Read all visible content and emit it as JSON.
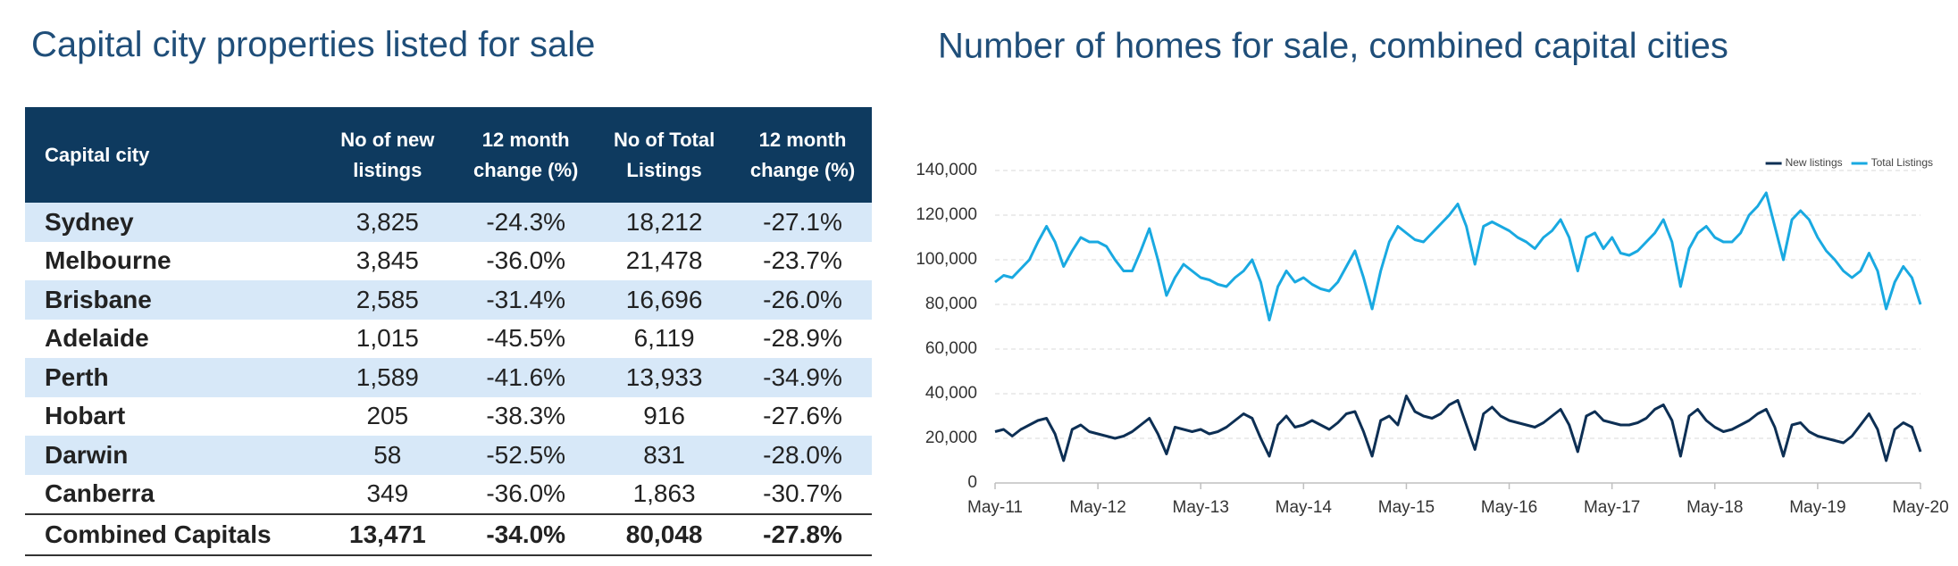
{
  "title": "Capital city properties listed for sale",
  "table": {
    "header": [
      "Capital city",
      "No of new listings",
      "12 month change (%)",
      "No of Total Listings",
      "12 month change (%)"
    ],
    "rows": [
      [
        "Sydney",
        "3,825",
        "-24.3%",
        "18,212",
        "-27.1%"
      ],
      [
        "Melbourne",
        "3,845",
        "-36.0%",
        "21,478",
        "-23.7%"
      ],
      [
        "Brisbane",
        "2,585",
        "-31.4%",
        "16,696",
        "-26.0%"
      ],
      [
        "Adelaide",
        "1,015",
        "-45.5%",
        "6,119",
        "-28.9%"
      ],
      [
        "Perth",
        "1,589",
        "-41.6%",
        "13,933",
        "-34.9%"
      ],
      [
        "Hobart",
        "205",
        "-38.3%",
        "916",
        "-27.6%"
      ],
      [
        "Darwin",
        "58",
        "-52.5%",
        "831",
        "-28.0%"
      ],
      [
        "Canberra",
        "349",
        "-36.0%",
        "1,863",
        "-30.7%"
      ]
    ],
    "total": [
      "Combined Capitals",
      "13,471",
      "-34.0%",
      "80,048",
      "-27.8%"
    ]
  },
  "chart_data": {
    "type": "line",
    "title": "Number of homes for sale, combined capital cities",
    "categories": [
      "May-11",
      null,
      null,
      null,
      null,
      null,
      null,
      null,
      null,
      null,
      null,
      null,
      "May-12",
      null,
      null,
      null,
      null,
      null,
      null,
      null,
      null,
      null,
      null,
      null,
      "May-13",
      null,
      null,
      null,
      null,
      null,
      null,
      null,
      null,
      null,
      null,
      null,
      "May-14",
      null,
      null,
      null,
      null,
      null,
      null,
      null,
      null,
      null,
      null,
      null,
      "May-15",
      null,
      null,
      null,
      null,
      null,
      null,
      null,
      null,
      null,
      null,
      null,
      "May-16",
      null,
      null,
      null,
      null,
      null,
      null,
      null,
      null,
      null,
      null,
      null,
      "May-17",
      null,
      null,
      null,
      null,
      null,
      null,
      null,
      null,
      null,
      null,
      null,
      "May-18",
      null,
      null,
      null,
      null,
      null,
      null,
      null,
      null,
      null,
      null,
      null,
      "May-19",
      null,
      null,
      null,
      null,
      null,
      null,
      null,
      null,
      null,
      null,
      null,
      "May-20"
    ],
    "series": [
      {
        "name": "New listings",
        "color": "#0d2f54",
        "values": [
          23000,
          24000,
          21000,
          24000,
          26000,
          28000,
          29000,
          22000,
          10000,
          24000,
          26000,
          23000,
          22000,
          21000,
          20000,
          21000,
          23000,
          26000,
          29000,
          22000,
          13000,
          25000,
          24000,
          23000,
          24000,
          22000,
          23000,
          25000,
          28000,
          31000,
          29000,
          20000,
          12000,
          26000,
          30000,
          25000,
          26000,
          28000,
          26000,
          24000,
          27000,
          31000,
          32000,
          23000,
          12000,
          28000,
          30000,
          26000,
          39000,
          32000,
          30000,
          29000,
          31000,
          35000,
          37000,
          26000,
          15000,
          31000,
          34000,
          30000,
          28000,
          27000,
          26000,
          25000,
          27000,
          30000,
          33000,
          26000,
          14000,
          30000,
          32000,
          28000,
          27000,
          26000,
          26000,
          27000,
          29000,
          33000,
          35000,
          28000,
          12000,
          30000,
          33000,
          28000,
          25000,
          23000,
          24000,
          26000,
          28000,
          31000,
          33000,
          25000,
          12000,
          26000,
          27000,
          23000,
          21000,
          20000,
          19000,
          18000,
          21000,
          26000,
          31000,
          24000,
          10000,
          24000,
          27000,
          25000,
          14000
        ]
      },
      {
        "name": "Total Listings",
        "color": "#19a9e1",
        "values": [
          90000,
          93000,
          92000,
          96000,
          100000,
          108000,
          115000,
          108000,
          97000,
          104000,
          110000,
          108000,
          108000,
          106000,
          100000,
          95000,
          95000,
          104000,
          114000,
          100000,
          84000,
          92000,
          98000,
          95000,
          92000,
          91000,
          89000,
          88000,
          92000,
          95000,
          100000,
          90000,
          73000,
          88000,
          95000,
          90000,
          92000,
          89000,
          87000,
          86000,
          90000,
          97000,
          104000,
          92000,
          78000,
          95000,
          108000,
          115000,
          112000,
          109000,
          108000,
          112000,
          116000,
          120000,
          125000,
          115000,
          98000,
          115000,
          117000,
          115000,
          113000,
          110000,
          108000,
          105000,
          110000,
          113000,
          118000,
          110000,
          95000,
          110000,
          112000,
          105000,
          110000,
          103000,
          102000,
          104000,
          108000,
          112000,
          118000,
          108000,
          88000,
          105000,
          112000,
          115000,
          110000,
          108000,
          108000,
          112000,
          120000,
          124000,
          130000,
          115000,
          100000,
          118000,
          122000,
          118000,
          110000,
          104000,
          100000,
          95000,
          92000,
          95000,
          103000,
          95000,
          78000,
          90000,
          97000,
          92000,
          80000
        ]
      }
    ],
    "ylim": [
      0,
      140000
    ],
    "yticks": [
      0,
      {
        "value": 20000,
        "label": "20,000"
      },
      {
        "value": 40000,
        "label": "40,000"
      },
      {
        "value": 60000,
        "label": "60,000"
      },
      {
        "value": 80000,
        "label": "80,000"
      },
      {
        "value": 100000,
        "label": "100,000"
      },
      {
        "value": 120000,
        "label": "120,000"
      },
      {
        "value": 140000,
        "label": "140,000"
      }
    ],
    "grid": true,
    "legend": "top-right"
  }
}
